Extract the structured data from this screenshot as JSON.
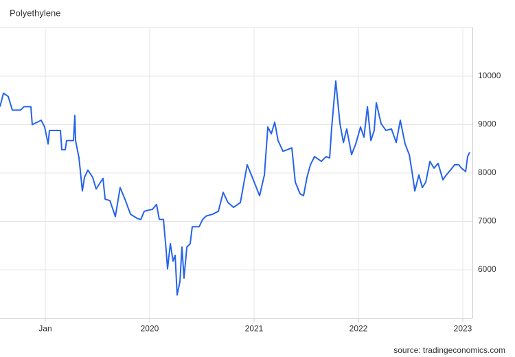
{
  "chart_data": {
    "type": "line",
    "title": "Polyethylene",
    "source": "source: tradingeconomics.com",
    "x": [
      2018.566,
      2018.599,
      2018.645,
      2018.684,
      2018.763,
      2018.796,
      2018.862,
      2018.875,
      2018.961,
      2018.994,
      2019.027,
      2019.04,
      2019.145,
      2019.158,
      2019.191,
      2019.204,
      2019.27,
      2019.283,
      2019.29,
      2019.323,
      2019.355,
      2019.375,
      2019.408,
      2019.454,
      2019.487,
      2019.553,
      2019.573,
      2019.619,
      2019.671,
      2019.717,
      2019.763,
      2019.816,
      2019.882,
      2019.915,
      2019.948,
      2020.026,
      2020.066,
      2020.092,
      2020.132,
      2020.158,
      2020.171,
      2020.198,
      2020.224,
      2020.244,
      2020.263,
      2020.29,
      2020.309,
      2020.329,
      2020.356,
      2020.388,
      2020.408,
      2020.474,
      2020.507,
      2020.54,
      2020.605,
      2020.658,
      2020.704,
      2020.75,
      2020.803,
      2020.869,
      2020.908,
      2020.934,
      2020.987,
      2021.053,
      2021.099,
      2021.132,
      2021.165,
      2021.198,
      2021.23,
      2021.277,
      2021.316,
      2021.362,
      2021.395,
      2021.441,
      2021.474,
      2021.507,
      2021.54,
      2021.579,
      2021.645,
      2021.691,
      2021.724,
      2021.744,
      2021.77,
      2021.783,
      2021.803,
      2021.823,
      2021.856,
      2021.888,
      2021.934,
      2021.974,
      2022.02,
      2022.053,
      2022.086,
      2022.119,
      2022.151,
      2022.171,
      2022.217,
      2022.263,
      2022.316,
      2022.362,
      2022.401,
      2022.447,
      2022.487,
      2022.513,
      2022.54,
      2022.579,
      2022.612,
      2022.645,
      2022.685,
      2022.724,
      2022.763,
      2022.809,
      2022.842,
      2022.882,
      2022.921,
      2022.961,
      2022.987,
      2023.027,
      2023.046,
      2023.066
    ],
    "series": [
      {
        "name": "Polyethylene",
        "color": "#2563eb",
        "values": [
          9370,
          9650,
          9580,
          9300,
          9300,
          9370,
          9370,
          9000,
          9090,
          8950,
          8600,
          8880,
          8880,
          8480,
          8480,
          8670,
          8670,
          9190,
          8670,
          8310,
          7630,
          7910,
          8060,
          7910,
          7670,
          7890,
          7460,
          7430,
          7100,
          7700,
          7460,
          7150,
          7060,
          7040,
          7210,
          7250,
          7350,
          7040,
          7040,
          6400,
          6020,
          6540,
          6180,
          6300,
          5480,
          5760,
          6470,
          5830,
          6470,
          6540,
          6890,
          6890,
          7040,
          7110,
          7150,
          7210,
          7600,
          7390,
          7290,
          7390,
          7860,
          8170,
          7890,
          7530,
          7960,
          8950,
          8810,
          9050,
          8670,
          8450,
          8480,
          8520,
          7810,
          7570,
          7530,
          7910,
          8170,
          8340,
          8240,
          8340,
          8310,
          8950,
          9590,
          9900,
          9450,
          9020,
          8630,
          8910,
          8380,
          8600,
          8950,
          8740,
          9370,
          8670,
          8880,
          9450,
          9020,
          8880,
          8910,
          8630,
          9090,
          8600,
          8380,
          8030,
          7630,
          7960,
          7700,
          7810,
          8240,
          8100,
          8200,
          7860,
          7960,
          8060,
          8170,
          8170,
          8100,
          8030,
          8340,
          8430
        ]
      }
    ],
    "xlim": [
      2018.566,
      2023.092
    ],
    "xticks": [
      {
        "value": 2019,
        "label": "Jan"
      },
      2020,
      2021,
      2022,
      2023
    ],
    "ylim": [
      5000,
      11000
    ],
    "yticks": [
      6000,
      7000,
      8000,
      9000,
      10000
    ],
    "grid": true
  }
}
